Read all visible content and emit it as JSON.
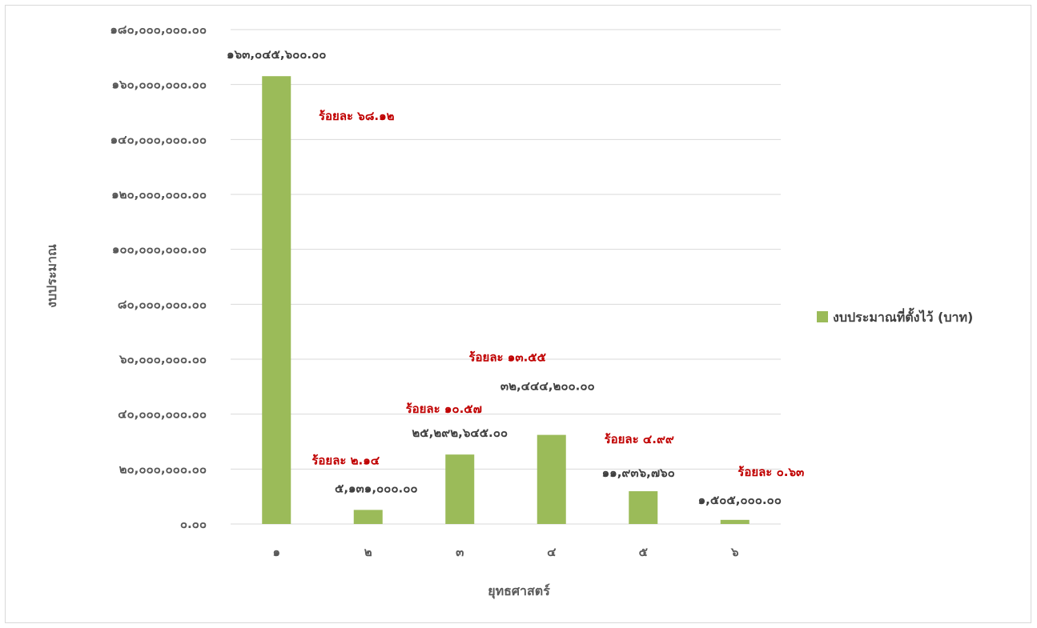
{
  "chart_data": {
    "type": "bar",
    "categories": [
      "๑",
      "๒",
      "๓",
      "๔",
      "๕",
      "๖"
    ],
    "series": [
      {
        "name": "งบประมาณที่ตั้งไว้ (บาท)",
        "values": [
          163045600,
          5131000,
          25292645,
          32444200,
          11936760,
          1505000
        ],
        "value_labels": [
          "๑๖๓,๐๔๕,๖๐๐.๐๐",
          "๕,๑๓๑,๐๐๐.๐๐",
          "๒๕,๒๙๒,๖๔๕.๐๐",
          "๓๒,๔๔๔,๒๐๐.๐๐",
          "๑๑,๙๓๖,๗๖๐",
          "๑,๕๐๕,๐๐๐.๐๐"
        ],
        "percent_labels": [
          "ร้อยละ ๖๘.๑๒",
          "ร้อยละ ๒.๑๔",
          "ร้อยละ ๑๐.๕๗",
          "ร้อยละ ๑๓.๕๕",
          "ร้อยละ ๔.๙๙",
          "ร้อยละ ๐.๖๓"
        ],
        "color": "#9bbb59"
      }
    ],
    "xlabel": "ยุทธศาสตร์",
    "ylabel": "งบประมาณ",
    "ylim": [
      0,
      180000000
    ],
    "yticks": [
      0,
      20000000,
      40000000,
      60000000,
      80000000,
      100000000,
      120000000,
      140000000,
      160000000,
      180000000
    ],
    "ytick_labels": [
      "๐.๐๐",
      "๒๐,๐๐๐,๐๐๐.๐๐",
      "๔๐,๐๐๐,๐๐๐.๐๐",
      "๖๐,๐๐๐,๐๐๐.๐๐",
      "๘๐,๐๐๐,๐๐๐.๐๐",
      "๑๐๐,๐๐๐,๐๐๐.๐๐",
      "๑๒๐,๐๐๐,๐๐๐.๐๐",
      "๑๔๐,๐๐๐,๐๐๐.๐๐",
      "๑๖๐,๐๐๐,๐๐๐.๐๐",
      "๑๘๐,๐๐๐,๐๐๐.๐๐"
    ],
    "grid": true,
    "legend_position": "right",
    "gridline_color": "#d9d9d9"
  }
}
